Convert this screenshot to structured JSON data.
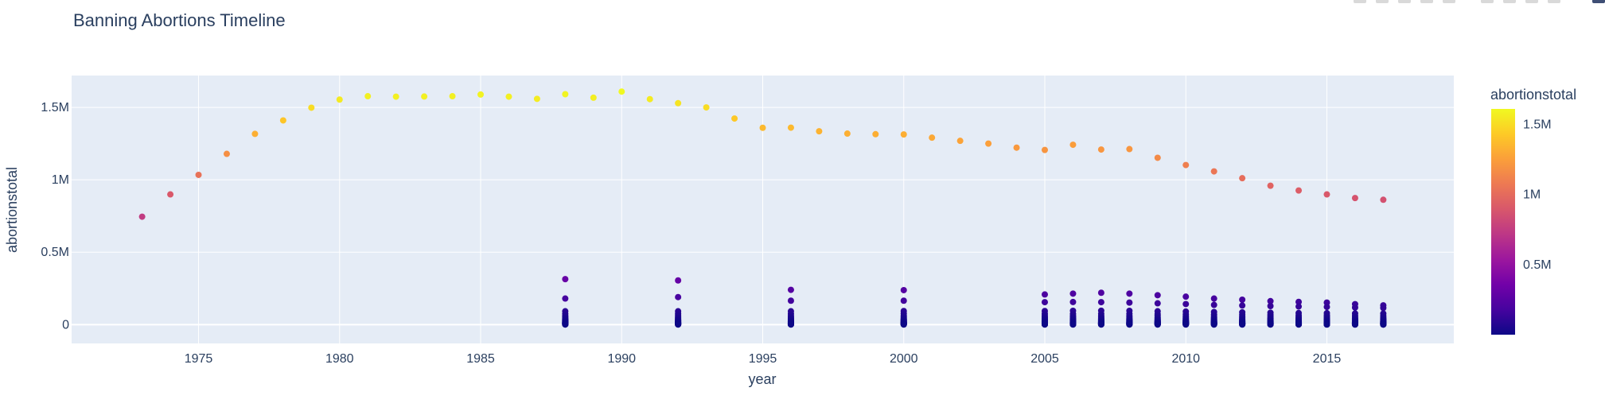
{
  "chart_data": {
    "type": "scatter",
    "title": "Banning Abortions Timeline",
    "xlabel": "year",
    "ylabel": "abortionstotal",
    "xlim": [
      1970.5,
      2019.5
    ],
    "ylim": [
      -130000,
      1720000
    ],
    "x_ticks": [
      1975,
      1980,
      1985,
      1990,
      1995,
      2000,
      2005,
      2010,
      2015
    ],
    "x_tick_labels": [
      "1975",
      "1980",
      "1985",
      "1990",
      "1995",
      "2000",
      "2005",
      "2010",
      "2015"
    ],
    "y_ticks": [
      0,
      500000,
      1000000,
      1500000
    ],
    "y_tick_labels": [
      "0",
      "0.5M",
      "1M",
      "1.5M"
    ],
    "grid": true,
    "colorbar": {
      "title": "abortionstotal",
      "min": 0,
      "max": 1610000,
      "ticks": [
        500000,
        1000000,
        1500000
      ],
      "tick_labels": [
        "0.5M",
        "1M",
        "1.5M"
      ],
      "colorscale": [
        "#0d0887",
        "#46039f",
        "#7201a8",
        "#9c179e",
        "#bd3786",
        "#d8576b",
        "#ed7953",
        "#fb9f3a",
        "#fdca26",
        "#f0f921"
      ]
    },
    "national_series": {
      "x": [
        1973,
        1974,
        1975,
        1976,
        1977,
        1978,
        1979,
        1980,
        1981,
        1982,
        1983,
        1984,
        1985,
        1986,
        1987,
        1988,
        1989,
        1990,
        1991,
        1992,
        1993,
        1994,
        1995,
        1996,
        1997,
        1998,
        1999,
        2000,
        2001,
        2002,
        2003,
        2004,
        2005,
        2006,
        2007,
        2008,
        2009,
        2010,
        2011,
        2012,
        2013,
        2014,
        2015,
        2016,
        2017
      ],
      "y": [
        745000,
        899000,
        1034000,
        1179000,
        1317000,
        1410000,
        1498000,
        1554000,
        1577000,
        1574000,
        1575000,
        1577000,
        1589000,
        1574000,
        1559000,
        1591000,
        1567000,
        1609000,
        1557000,
        1529000,
        1500000,
        1423000,
        1359000,
        1360000,
        1335000,
        1319000,
        1315000,
        1313000,
        1291000,
        1269000,
        1250000,
        1222000,
        1206000,
        1242000,
        1209000,
        1212000,
        1152000,
        1102000,
        1058000,
        1011000,
        959000,
        926000,
        899000,
        874000,
        862000
      ]
    },
    "state_years": [
      1988,
      1992,
      1996,
      2000,
      2005,
      2006,
      2007,
      2008,
      2009,
      2010,
      2011,
      2012,
      2013,
      2014,
      2015,
      2016,
      2017
    ],
    "state_series": {
      "1988": [
        314000,
        180000,
        92000,
        75000,
        62000,
        52000,
        45000,
        39000,
        34000,
        30000,
        27000,
        24000,
        21000,
        19000,
        17000,
        15000,
        13000,
        11000,
        9500,
        8000,
        6500,
        5200,
        4000,
        3000,
        2000,
        1200,
        600
      ],
      "1992": [
        305000,
        190000,
        92000,
        76000,
        63000,
        53000,
        46000,
        40000,
        35000,
        31000,
        28000,
        25000,
        22000,
        19500,
        17000,
        15000,
        13000,
        11000,
        9500,
        8000,
        6500,
        5000,
        4000,
        3000,
        2000,
        1100,
        500
      ],
      "1996": [
        240000,
        165000,
        92000,
        74000,
        61000,
        51000,
        44000,
        38000,
        33000,
        29000,
        26000,
        23000,
        20000,
        18000,
        16000,
        14000,
        12000,
        10500,
        9000,
        7500,
        6000,
        5000,
        4000,
        3000,
        2000,
        1000,
        500
      ],
      "2000": [
        238000,
        165000,
        94000,
        76000,
        62000,
        52000,
        45000,
        39000,
        34000,
        30000,
        27000,
        24000,
        21000,
        18500,
        16500,
        14500,
        12500,
        11000,
        9500,
        8000,
        6500,
        5000,
        4000,
        3000,
        2000,
        1000,
        500
      ],
      "2005": [
        208000,
        155000,
        94000,
        74000,
        61000,
        51000,
        44000,
        38000,
        33000,
        29000,
        26000,
        23000,
        20000,
        18000,
        16000,
        14000,
        12000,
        10500,
        9000,
        7500,
        6000,
        5000,
        4000,
        3000,
        2000,
        1000,
        500
      ],
      "2006": [
        214000,
        156000,
        95000,
        75000,
        62000,
        52000,
        45000,
        39000,
        34000,
        30000,
        27000,
        24000,
        21000,
        18500,
        16500,
        14500,
        12500,
        11000,
        9500,
        8000,
        6500,
        5000,
        4000,
        3000,
        2000,
        1000,
        500
      ],
      "2007": [
        220000,
        155000,
        96000,
        75000,
        62000,
        52000,
        45000,
        39000,
        34000,
        30000,
        27000,
        24000,
        21000,
        18500,
        16500,
        14500,
        12500,
        11000,
        9500,
        8000,
        6500,
        5000,
        4000,
        3000,
        2000,
        1000,
        500
      ],
      "2008": [
        214000,
        152000,
        95000,
        75000,
        62000,
        52000,
        45000,
        39000,
        34000,
        30000,
        27000,
        24000,
        21000,
        18500,
        16500,
        14500,
        12500,
        11000,
        9500,
        8000,
        6500,
        5000,
        4000,
        3000,
        2000,
        1000,
        500
      ],
      "2009": [
        203000,
        147000,
        92000,
        73000,
        60000,
        50000,
        43000,
        37000,
        32000,
        28000,
        25000,
        22000,
        19500,
        17500,
        15500,
        13500,
        12000,
        10500,
        9000,
        7500,
        6000,
        5000,
        4000,
        3000,
        2000,
        1000,
        500
      ],
      "2010": [
        193000,
        142000,
        90000,
        72000,
        59000,
        49000,
        42000,
        36000,
        31000,
        27000,
        24000,
        21500,
        19000,
        17000,
        15000,
        13000,
        11500,
        10000,
        8500,
        7000,
        6000,
        5000,
        4000,
        3000,
        2000,
        1000,
        500
      ],
      "2011": [
        180000,
        136000,
        87000,
        70000,
        57000,
        48000,
        41000,
        35000,
        30000,
        26000,
        23500,
        21000,
        18500,
        16500,
        14500,
        12500,
        11000,
        9500,
        8000,
        7000,
        6000,
        5000,
        4000,
        3000,
        2000,
        1000,
        500
      ],
      "2012": [
        172000,
        132000,
        85000,
        68000,
        56000,
        47000,
        40000,
        34000,
        29500,
        25500,
        23000,
        20500,
        18000,
        16000,
        14000,
        12000,
        10500,
        9000,
        8000,
        7000,
        6000,
        5000,
        4000,
        3000,
        2000,
        1000,
        500
      ],
      "2013": [
        162000,
        128000,
        82000,
        66000,
        54000,
        45000,
        38500,
        33000,
        28500,
        25000,
        22500,
        20000,
        17500,
        15500,
        13500,
        11500,
        10000,
        9000,
        8000,
        7000,
        6000,
        5000,
        4000,
        3000,
        2000,
        1000,
        500
      ],
      "2014": [
        157000,
        125000,
        80000,
        64000,
        53000,
        44000,
        37500,
        32000,
        28000,
        24500,
        22000,
        19500,
        17000,
        15000,
        13000,
        11500,
        10000,
        9000,
        8000,
        7000,
        6000,
        5000,
        4000,
        3000,
        2000,
        1000,
        500
      ],
      "2015": [
        152000,
        122000,
        79000,
        63000,
        52000,
        43000,
        37000,
        31500,
        27500,
        24000,
        21500,
        19000,
        16500,
        14500,
        12500,
        11000,
        9500,
        8500,
        7500,
        6500,
        5500,
        4500,
        3500,
        2500,
        1500,
        800,
        400
      ],
      "2016": [
        141000,
        118000,
        77000,
        62000,
        51000,
        42000,
        36000,
        31000,
        27000,
        23500,
        21000,
        18500,
        16500,
        14500,
        12500,
        11000,
        9500,
        8500,
        7500,
        6500,
        5500,
        4500,
        3500,
        2500,
        1500,
        800,
        400
      ],
      "2017": [
        133000,
        115000,
        76000,
        61000,
        50000,
        41500,
        35500,
        30500,
        26500,
        23000,
        20500,
        18000,
        16000,
        14000,
        12000,
        10500,
        9000,
        8000,
        7000,
        6000,
        5000,
        4000,
        3000,
        2000,
        1200,
        700,
        300
      ]
    }
  }
}
